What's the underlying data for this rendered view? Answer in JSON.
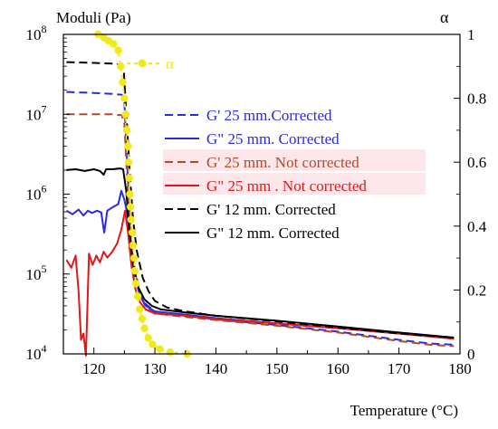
{
  "chart_data": {
    "type": "line",
    "left_axis_title": "Moduli (Pa)",
    "right_axis_title": "α",
    "xlabel": "Temperature (°C)",
    "x_ticks": [
      120,
      130,
      140,
      150,
      160,
      170,
      180
    ],
    "xlim": [
      115,
      180
    ],
    "y_left_scale": "log",
    "ylim_left": [
      10000,
      100000000
    ],
    "y_left_ticks": [
      {
        "mant": "10",
        "exp": "4"
      },
      {
        "mant": "10",
        "exp": "5"
      },
      {
        "mant": "10",
        "exp": "6"
      },
      {
        "mant": "10",
        "exp": "7"
      },
      {
        "mant": "10",
        "exp": "8"
      }
    ],
    "y_right_ticks": [
      "0",
      "0.2",
      "0.4",
      "0.6",
      "0.8",
      "1"
    ],
    "ylim_right": [
      0,
      1
    ],
    "alpha_series": {
      "name": "α",
      "color": "#f0ea1c",
      "points": [
        [
          120.7,
          1.0
        ],
        [
          121.6,
          0.99
        ],
        [
          122.4,
          0.98
        ],
        [
          123.2,
          0.97
        ],
        [
          124.0,
          0.95
        ],
        [
          124.4,
          0.9
        ],
        [
          124.7,
          0.85
        ],
        [
          125.0,
          0.8
        ],
        [
          125.2,
          0.75
        ],
        [
          125.4,
          0.7
        ],
        [
          125.6,
          0.65
        ],
        [
          125.7,
          0.6
        ],
        [
          125.8,
          0.55
        ],
        [
          125.9,
          0.5
        ],
        [
          126.0,
          0.46
        ],
        [
          126.1,
          0.42
        ],
        [
          126.3,
          0.38
        ],
        [
          126.4,
          0.34
        ],
        [
          126.6,
          0.3
        ],
        [
          126.7,
          0.26
        ],
        [
          126.9,
          0.22
        ],
        [
          127.2,
          0.18
        ],
        [
          127.5,
          0.14
        ],
        [
          127.9,
          0.11
        ],
        [
          128.3,
          0.08
        ],
        [
          128.9,
          0.05
        ],
        [
          129.6,
          0.03
        ],
        [
          130.8,
          0.015
        ],
        [
          132.5,
          0.005
        ],
        [
          135.3,
          0.0
        ]
      ]
    },
    "legend_alpha_label": "α",
    "series": [
      {
        "name": "G' 25 mm.Corrected",
        "color": "#2a2ae0",
        "dash": true,
        "points": [
          [
            115.5,
            19000000.0
          ],
          [
            120,
            18500000.0
          ],
          [
            123,
            18000000.0
          ],
          [
            124.6,
            17500000.0
          ],
          [
            125,
            14000000.0
          ],
          [
            125.5,
            2000000.0
          ],
          [
            126,
            400000.0
          ],
          [
            126.6,
            130000.0
          ],
          [
            127.5,
            60000.0
          ],
          [
            128.5,
            42000.0
          ],
          [
            130,
            34000.0
          ],
          [
            135,
            30000.0
          ],
          [
            140,
            27000.0
          ],
          [
            150,
            23000.0
          ],
          [
            160,
            19000.0
          ],
          [
            170,
            15000.0
          ],
          [
            175,
            13500.0
          ],
          [
            179,
            13000.0
          ]
        ]
      },
      {
        "name": "G\" 25 mm. Corrected",
        "color": "#2a2ae0",
        "dash": false,
        "points": [
          [
            115.5,
            620000.0
          ],
          [
            116.5,
            560000.0
          ],
          [
            117.5,
            640000.0
          ],
          [
            118.3,
            540000.0
          ],
          [
            119,
            620000.0
          ],
          [
            119.7,
            580000.0
          ],
          [
            120.5,
            620000.0
          ],
          [
            121.2,
            590000.0
          ],
          [
            121.7,
            330000.0
          ],
          [
            122.2,
            620000.0
          ],
          [
            123,
            680000.0
          ],
          [
            124,
            750000.0
          ],
          [
            124.5,
            1100000.0
          ],
          [
            125,
            850000.0
          ],
          [
            125.5,
            550000.0
          ],
          [
            126,
            220000.0
          ],
          [
            126.6,
            100000.0
          ],
          [
            127.5,
            55000.0
          ],
          [
            128.5,
            40000.0
          ],
          [
            130,
            34000.0
          ],
          [
            135,
            31000.0
          ],
          [
            140,
            28000.0
          ],
          [
            150,
            24000.0
          ],
          [
            160,
            21000.0
          ],
          [
            170,
            18000.0
          ],
          [
            179,
            15500.0
          ]
        ]
      },
      {
        "name": "G' 25 mm. Not corrected",
        "color": "#b5482a",
        "dash": true,
        "points": [
          [
            115.5,
            10000000.0
          ],
          [
            120,
            10000000.0
          ],
          [
            123,
            10000000.0
          ],
          [
            124.6,
            9700000.0
          ],
          [
            125,
            7500000.0
          ],
          [
            125.5,
            1300000.0
          ],
          [
            126,
            300000.0
          ],
          [
            126.6,
            110000.0
          ],
          [
            127.5,
            55000.0
          ],
          [
            128.5,
            39000.0
          ],
          [
            130,
            32000.0
          ],
          [
            135,
            29000.0
          ],
          [
            140,
            26500.0
          ],
          [
            150,
            22500.0
          ],
          [
            160,
            18500.0
          ],
          [
            170,
            14500.0
          ],
          [
            175,
            13000.0
          ],
          [
            179,
            12500.0
          ]
        ]
      },
      {
        "name": "G\" 25 mm . Not corrected",
        "color": "#e01818",
        "dash": false,
        "points": [
          [
            115.5,
            150000.0
          ],
          [
            116.3,
            120000.0
          ],
          [
            117,
            170000.0
          ],
          [
            117.5,
            60000.0
          ],
          [
            117.9,
            15000.0
          ],
          [
            118.3,
            18000.0
          ],
          [
            118.7,
            9500.0
          ],
          [
            119.2,
            180000.0
          ],
          [
            119.8,
            130000.0
          ],
          [
            120.4,
            170000.0
          ],
          [
            121,
            140000.0
          ],
          [
            121.6,
            190000.0
          ],
          [
            122.2,
            160000.0
          ],
          [
            123,
            190000.0
          ],
          [
            123.8,
            240000.0
          ],
          [
            124.5,
            360000.0
          ],
          [
            125.1,
            620000.0
          ],
          [
            125.6,
            330000.0
          ],
          [
            126.2,
            120000.0
          ],
          [
            126.8,
            65000.0
          ],
          [
            127.5,
            45000.0
          ],
          [
            128.5,
            36000.0
          ],
          [
            130,
            32000.0
          ],
          [
            135,
            30000.0
          ],
          [
            140,
            27500.0
          ],
          [
            150,
            24000.0
          ],
          [
            160,
            21000.0
          ],
          [
            170,
            18000.0
          ],
          [
            179,
            15500.0
          ]
        ]
      },
      {
        "name": "G' 12 mm. Corrected",
        "color": "#000000",
        "dash": true,
        "points": [
          [
            115.5,
            45000000.0
          ],
          [
            120,
            44000000.0
          ],
          [
            123,
            43000000.0
          ],
          [
            124.4,
            42000000.0
          ],
          [
            124.9,
            35000000.0
          ],
          [
            125.4,
            8000000.0
          ],
          [
            125.9,
            1800000.0
          ],
          [
            126.4,
            500000.0
          ],
          [
            127,
            200000.0
          ],
          [
            128,
            90000.0
          ],
          [
            129,
            60000.0
          ],
          [
            130,
            46000.0
          ],
          [
            132,
            38000.0
          ],
          [
            135,
            34000.0
          ],
          [
            140,
            30000.0
          ],
          [
            150,
            25500.0
          ],
          [
            160,
            21500.0
          ],
          [
            170,
            18000.0
          ],
          [
            179,
            16000.0
          ]
        ]
      },
      {
        "name": "G\" 12 mm. Corrected",
        "color": "#000000",
        "dash": false,
        "points": [
          [
            115.5,
            2000000.0
          ],
          [
            117,
            2050000.0
          ],
          [
            118.5,
            1950000.0
          ],
          [
            120,
            2050000.0
          ],
          [
            121,
            1950000.0
          ],
          [
            121.6,
            1750000.0
          ],
          [
            122,
            2050000.0
          ],
          [
            123,
            2050000.0
          ],
          [
            124.3,
            2100000.0
          ],
          [
            124.8,
            2050000.0
          ],
          [
            125.3,
            1100000.0
          ],
          [
            125.8,
            350000.0
          ],
          [
            126.4,
            140000.0
          ],
          [
            127.2,
            70000.0
          ],
          [
            128.3,
            48000.0
          ],
          [
            129.5,
            40000.0
          ],
          [
            131,
            36000.0
          ],
          [
            135,
            33000.0
          ],
          [
            140,
            30000.0
          ],
          [
            150,
            26000.0
          ],
          [
            160,
            22000.0
          ],
          [
            170,
            18500.0
          ],
          [
            179,
            16000.0
          ]
        ]
      }
    ]
  }
}
